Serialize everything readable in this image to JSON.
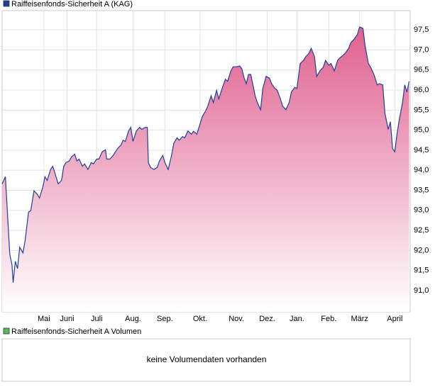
{
  "chart_data": {
    "type": "area",
    "x": [
      0,
      3,
      7,
      9,
      10,
      12,
      14,
      16,
      19,
      21,
      24,
      26,
      29,
      32,
      34,
      37,
      39,
      41,
      44,
      46,
      48,
      51,
      54,
      56,
      58,
      61,
      63,
      66,
      68,
      70,
      73,
      75,
      78,
      81,
      83,
      86,
      88,
      91,
      94,
      95,
      98,
      101,
      103,
      105,
      108,
      110,
      112,
      115,
      117,
      119,
      122,
      125,
      127,
      130,
      132,
      133,
      135,
      138,
      141,
      143,
      146,
      148,
      151,
      154,
      156,
      159,
      161,
      164,
      166,
      169,
      172,
      174,
      177,
      179,
      182,
      185,
      187,
      190,
      192,
      195,
      197,
      200,
      203,
      205,
      208,
      210,
      213,
      216,
      218,
      220,
      222,
      224,
      226,
      228,
      230,
      232,
      235,
      237,
      240,
      243,
      245,
      248,
      250,
      253,
      255,
      258,
      261,
      263,
      266,
      268,
      271,
      274,
      276,
      279,
      281,
      284,
      286,
      289,
      292,
      294,
      297,
      299,
      302,
      305,
      307,
      310,
      312,
      315,
      317,
      320,
      323,
      325,
      328,
      330,
      333,
      335,
      338,
      341,
      343,
      346,
      348,
      351,
      353,
      355,
      357,
      359,
      361,
      364,
      366,
      368,
      370
    ],
    "series": [
      {
        "name": "Raiffeisenfonds-Sicherheit A (KAG)",
        "color": "#1f3f9f",
        "fill": "#e0608f",
        "values": [
          93.66,
          93.84,
          91.9,
          91.64,
          91.2,
          91.73,
          91.55,
          92.08,
          91.94,
          92.26,
          92.96,
          92.99,
          93.49,
          93.4,
          93.31,
          93.58,
          93.84,
          93.75,
          94.02,
          94.1,
          93.93,
          93.66,
          93.75,
          94.1,
          94.19,
          94.23,
          94.33,
          94.4,
          94.23,
          94.28,
          94.1,
          94.16,
          94.02,
          94.19,
          94.16,
          94.28,
          94.28,
          94.46,
          94.51,
          94.28,
          94.28,
          94.37,
          94.46,
          94.54,
          94.63,
          94.75,
          94.72,
          94.98,
          95.07,
          94.72,
          94.98,
          95.07,
          95.02,
          95.07,
          95.07,
          94.19,
          94.07,
          94.02,
          94.07,
          94.23,
          94.37,
          94.19,
          94.02,
          94.37,
          94.67,
          94.81,
          94.75,
          94.84,
          94.81,
          94.98,
          94.9,
          94.97,
          94.9,
          95.07,
          95.34,
          95.48,
          95.6,
          95.86,
          95.69,
          95.99,
          95.78,
          96.04,
          96.27,
          96.22,
          96.48,
          96.58,
          96.58,
          96.6,
          96.53,
          96.3,
          96.16,
          96.39,
          96.39,
          96.13,
          95.86,
          95.69,
          95.51,
          96.04,
          96.34,
          96.3,
          96.16,
          96.04,
          96.0,
          95.78,
          95.6,
          95.51,
          95.69,
          95.95,
          96.07,
          96.04,
          96.66,
          96.74,
          96.83,
          96.92,
          97.04,
          96.83,
          96.34,
          96.48,
          96.57,
          96.74,
          96.62,
          96.66,
          96.48,
          96.74,
          96.8,
          96.87,
          96.92,
          97.04,
          97.18,
          97.27,
          97.39,
          97.57,
          97.54,
          97.1,
          96.66,
          96.57,
          96.39,
          96.13,
          96.16,
          96.13,
          95.42,
          95.02,
          95.21,
          94.54,
          94.46,
          94.9,
          95.25,
          95.69,
          96.13,
          95.95,
          96.22
        ]
      }
    ],
    "xlim": [
      0,
      371
    ],
    "xticks": [
      {
        "value": 38,
        "label": "Mai"
      },
      {
        "value": 59,
        "label": "Juni"
      },
      {
        "value": 86,
        "label": "Juli"
      },
      {
        "value": 119,
        "label": "Aug."
      },
      {
        "value": 148,
        "label": "Sep."
      },
      {
        "value": 180,
        "label": "Okt."
      },
      {
        "value": 213,
        "label": "Nov."
      },
      {
        "value": 241,
        "label": "Dez."
      },
      {
        "value": 268,
        "label": "Jan."
      },
      {
        "value": 297,
        "label": "Feb."
      },
      {
        "value": 325,
        "label": "März"
      },
      {
        "value": 357,
        "label": "April"
      }
    ],
    "ylim": [
      90.47,
      97.98
    ],
    "yticks": [
      {
        "value": 91.0,
        "label": "91,0"
      },
      {
        "value": 91.5,
        "label": "91,5"
      },
      {
        "value": 92.0,
        "label": "92,0"
      },
      {
        "value": 92.5,
        "label": "92,5"
      },
      {
        "value": 93.0,
        "label": "93,0"
      },
      {
        "value": 93.5,
        "label": "93,5"
      },
      {
        "value": 94.0,
        "label": "94,0"
      },
      {
        "value": 94.5,
        "label": "94,5"
      },
      {
        "value": 95.0,
        "label": "95,0"
      },
      {
        "value": 95.5,
        "label": "95,5"
      },
      {
        "value": 96.0,
        "label": "96,0"
      },
      {
        "value": 96.5,
        "label": "96,5"
      },
      {
        "value": 97.0,
        "label": "97,0"
      },
      {
        "value": 97.5,
        "label": "97,5"
      }
    ],
    "grid": true
  },
  "volume_panel": {
    "legend": "Raiffeisenfonds-Sicherheit A Volumen",
    "color": "#5cb85c",
    "message": "keine Volumendaten vorhanden"
  }
}
